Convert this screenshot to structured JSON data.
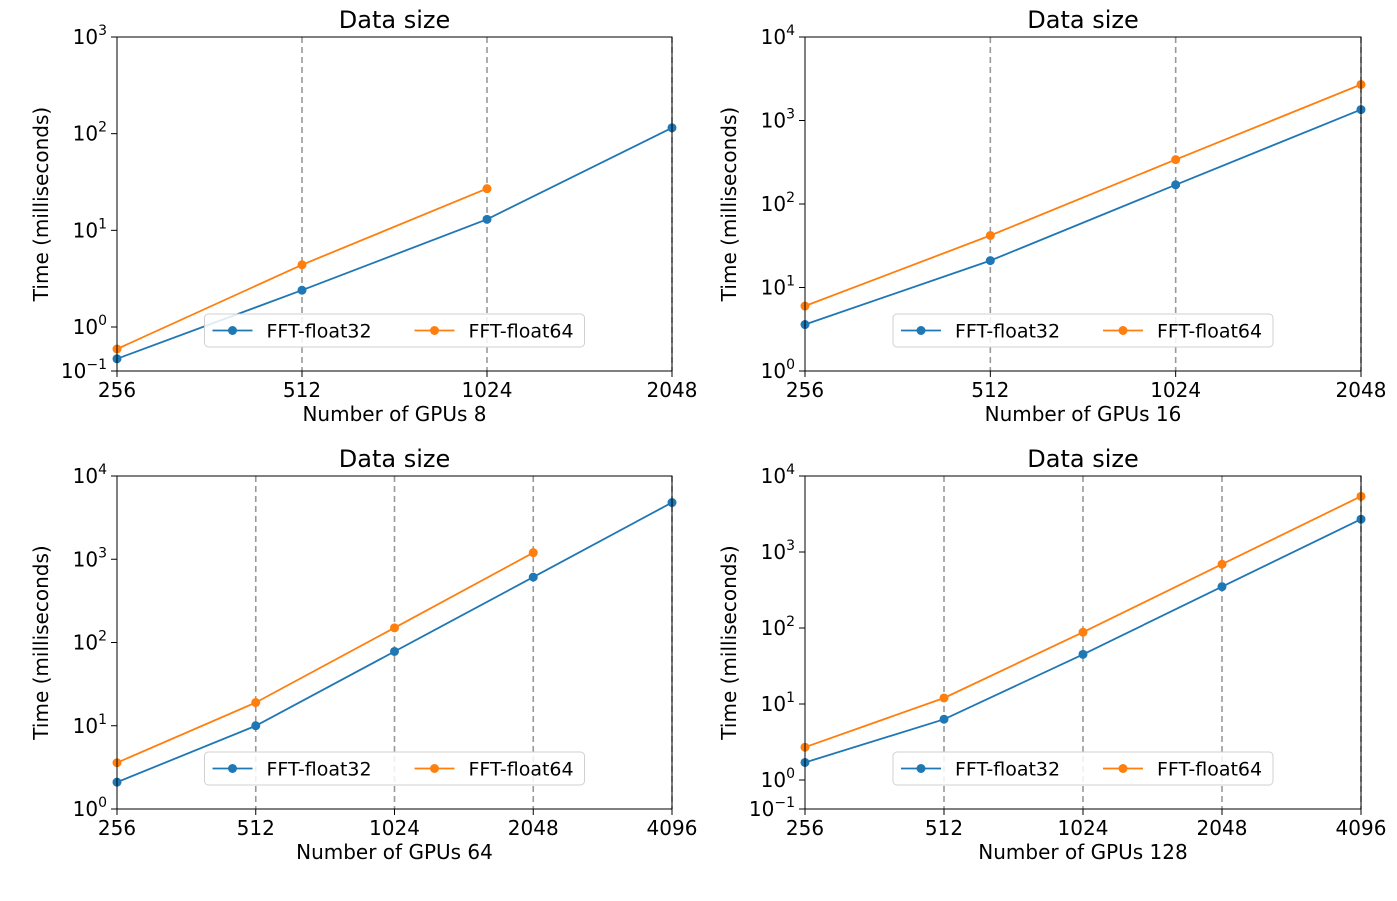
{
  "colors": {
    "float32": "#1f77b4",
    "float64": "#ff7f0e",
    "vline": "#999999",
    "axis": "#000000"
  },
  "chart_data": [
    {
      "type": "line",
      "title": "Data size",
      "xlabel": "Number of GPUs 8",
      "ylabel": "Time (milliseconds)",
      "x_scale": "log2",
      "y_scale": "symlog",
      "categories": [
        "256",
        "512",
        "1024",
        "2048"
      ],
      "x": [
        256,
        512,
        1024,
        2048
      ],
      "xlim": [
        256,
        2048
      ],
      "ylim": [
        0.1,
        1000
      ],
      "yticks": [
        "10^-1",
        "10^0",
        "10^1",
        "10^2",
        "10^3"
      ],
      "vlines": [
        512,
        1024,
        2048
      ],
      "legend": "lower-center",
      "series": [
        {
          "name": "FFT-float32",
          "color": "#1f77b4",
          "x": [
            256,
            512,
            1024,
            2048
          ],
          "values": [
            0.35,
            2.4,
            13,
            115
          ]
        },
        {
          "name": "FFT-float64",
          "color": "#ff7f0e",
          "x": [
            256,
            512,
            1024
          ],
          "values": [
            0.55,
            4.4,
            27
          ]
        }
      ]
    },
    {
      "type": "line",
      "title": "Data size",
      "xlabel": "Number of GPUs 16",
      "ylabel": "Time (milliseconds)",
      "x_scale": "log2",
      "y_scale": "symlog",
      "categories": [
        "256",
        "512",
        "1024",
        "2048"
      ],
      "x": [
        256,
        512,
        1024,
        2048
      ],
      "xlim": [
        256,
        2048
      ],
      "ylim": [
        1,
        10000
      ],
      "yticks": [
        "10^0",
        "10^1",
        "10^2",
        "10^3",
        "10^4"
      ],
      "vlines": [
        512,
        1024,
        2048
      ],
      "legend": "lower-center",
      "series": [
        {
          "name": "FFT-float32",
          "color": "#1f77b4",
          "x": [
            256,
            512,
            1024,
            2048
          ],
          "values": [
            3.6,
            21,
            170,
            1350
          ]
        },
        {
          "name": "FFT-float64",
          "color": "#ff7f0e",
          "x": [
            256,
            512,
            1024,
            2048
          ],
          "values": [
            6,
            42,
            340,
            2700
          ]
        }
      ]
    },
    {
      "type": "line",
      "title": "Data size",
      "xlabel": "Number of GPUs 64",
      "ylabel": "Time (milliseconds)",
      "x_scale": "log2",
      "y_scale": "symlog",
      "categories": [
        "256",
        "512",
        "1024",
        "2048",
        "4096"
      ],
      "x": [
        256,
        512,
        1024,
        2048,
        4096
      ],
      "xlim": [
        256,
        4096
      ],
      "ylim": [
        1,
        10000
      ],
      "yticks": [
        "10^0",
        "10^1",
        "10^2",
        "10^3",
        "10^4"
      ],
      "vlines": [
        512,
        1024,
        2048,
        4096
      ],
      "legend": "lower-center",
      "series": [
        {
          "name": "FFT-float32",
          "color": "#1f77b4",
          "x": [
            256,
            512,
            1024,
            2048,
            4096
          ],
          "values": [
            2.1,
            10,
            78,
            610,
            4800
          ]
        },
        {
          "name": "FFT-float64",
          "color": "#ff7f0e",
          "x": [
            256,
            512,
            1024,
            2048
          ],
          "values": [
            3.6,
            19,
            150,
            1200
          ]
        }
      ]
    },
    {
      "type": "line",
      "title": "Data size",
      "xlabel": "Number of GPUs 128",
      "ylabel": "Time (milliseconds)",
      "x_scale": "log2",
      "y_scale": "symlog",
      "categories": [
        "256",
        "512",
        "1024",
        "2048",
        "4096"
      ],
      "x": [
        256,
        512,
        1024,
        2048,
        4096
      ],
      "xlim": [
        256,
        4096
      ],
      "ylim": [
        0.1,
        10000
      ],
      "yticks": [
        "10^-1",
        "10^0",
        "10^1",
        "10^2",
        "10^3",
        "10^4"
      ],
      "vlines": [
        512,
        1024,
        2048,
        4096
      ],
      "legend": "lower-center",
      "series": [
        {
          "name": "FFT-float32",
          "color": "#1f77b4",
          "x": [
            256,
            512,
            1024,
            2048,
            4096
          ],
          "values": [
            1.7,
            6.3,
            45,
            350,
            2700
          ]
        },
        {
          "name": "FFT-float64",
          "color": "#ff7f0e",
          "x": [
            256,
            512,
            1024,
            2048,
            4096
          ],
          "values": [
            2.7,
            12,
            88,
            690,
            5400
          ]
        }
      ]
    }
  ]
}
